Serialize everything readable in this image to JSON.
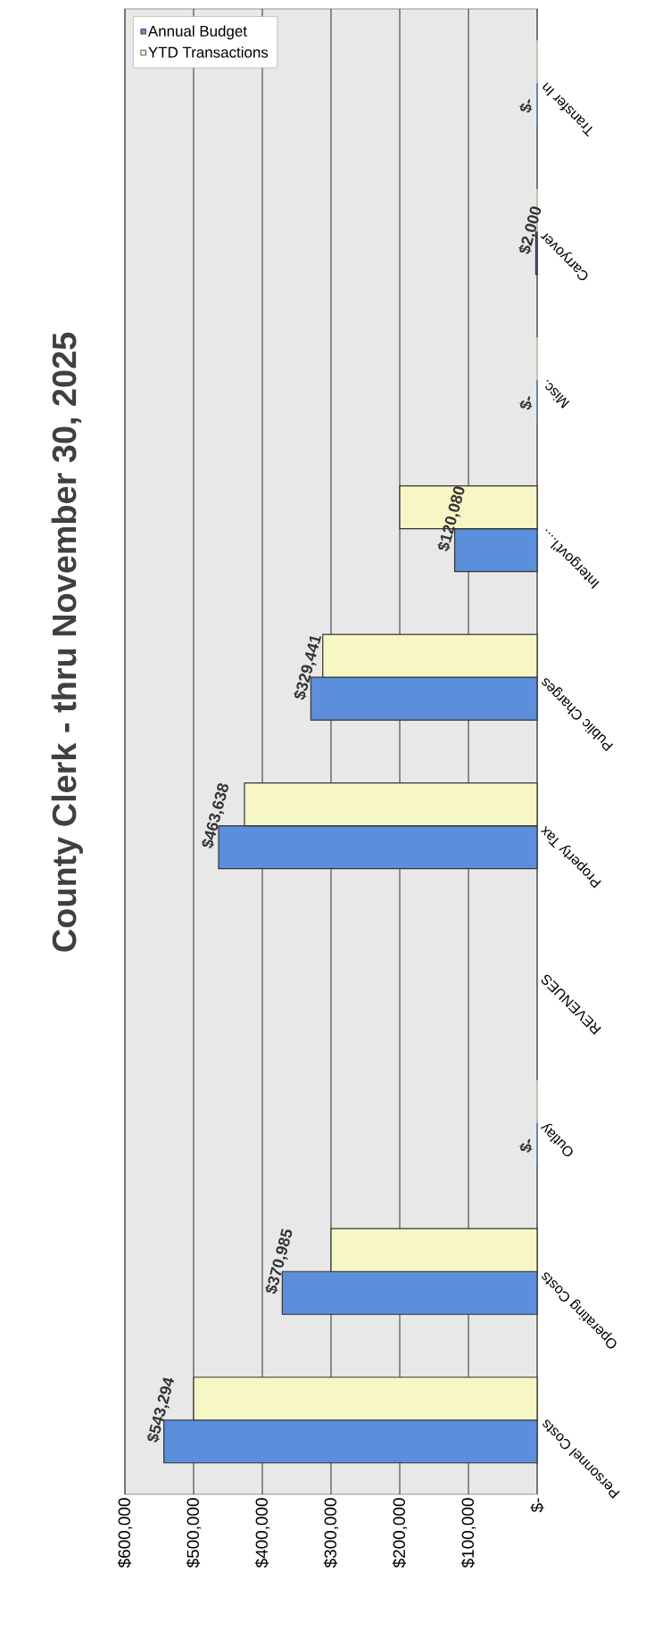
{
  "chart_data": {
    "type": "bar",
    "orientation": "horizontal",
    "title": "County Clerk - thru November 30, 2025",
    "categories": [
      "Transfer In",
      "Carryover",
      "Misc.",
      "Intergovt'l....",
      "Public Charges",
      "Property Tax",
      "REVENUES",
      "Outlay",
      "Operating Costs",
      "Personnel Costs"
    ],
    "series": [
      {
        "name": "Annual Budget",
        "color": "#5b8fdc",
        "values": [
          0,
          2000,
          0,
          120080,
          329441,
          463638,
          null,
          0,
          370985,
          543294
        ],
        "value_labels": [
          "$-",
          "$2,000",
          "$-",
          "$120,080",
          "$329,441",
          "$463,638",
          null,
          "$-",
          "$370,985",
          "$543,294"
        ]
      },
      {
        "name": "YTD Transactions",
        "color": "#f7f7c6",
        "values": [
          0,
          0,
          0,
          200000,
          312000,
          426000,
          null,
          0,
          300000,
          500000
        ]
      }
    ],
    "xlim": [
      600000,
      0
    ],
    "xticks": [
      {
        "value": 600000,
        "label": "$600,000"
      },
      {
        "value": 500000,
        "label": "$500,000"
      },
      {
        "value": 400000,
        "label": "$400,000"
      },
      {
        "value": 300000,
        "label": "$300,000"
      },
      {
        "value": 200000,
        "label": "$200,000"
      },
      {
        "value": 100000,
        "label": "$100,000"
      },
      {
        "value": 0,
        "label": "$-"
      }
    ],
    "grid": "x",
    "legend": "top left"
  }
}
